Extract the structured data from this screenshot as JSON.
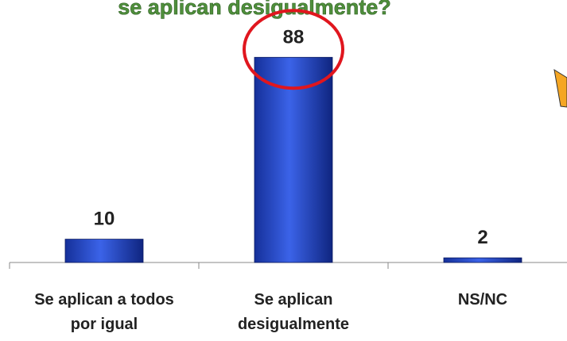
{
  "chart_data": {
    "type": "bar",
    "title": "se aplican desigualmente?",
    "categories": [
      "Se aplican a todos por igual",
      "Se aplican desigualmente",
      "NS/NC"
    ],
    "values": [
      10,
      88,
      2
    ],
    "color": "#2a4fd0"
  }
}
